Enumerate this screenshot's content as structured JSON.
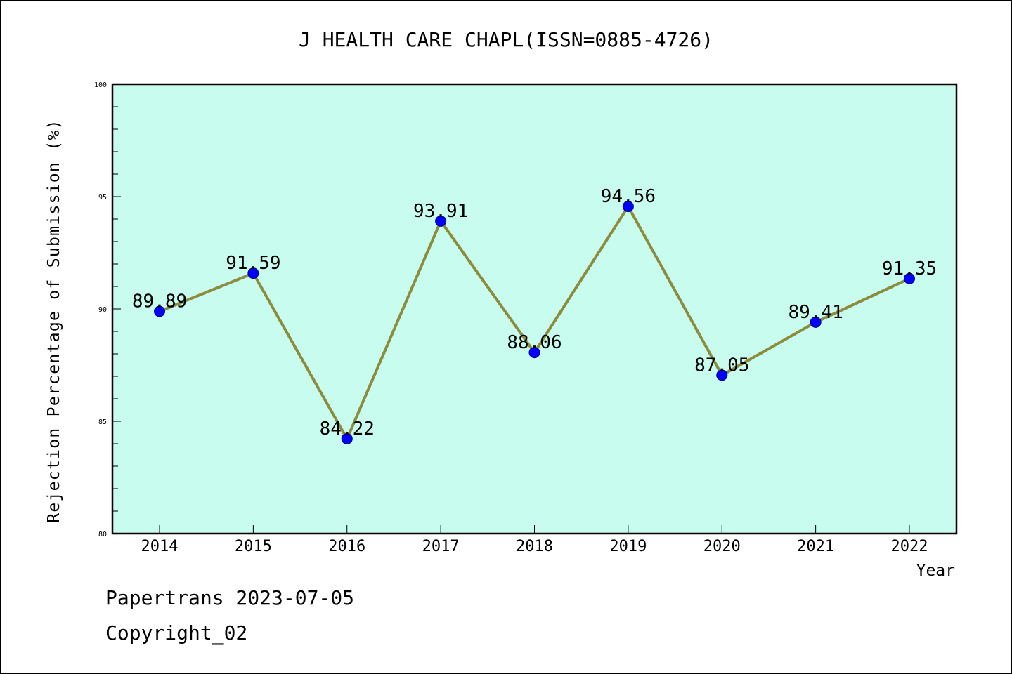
{
  "chart_data": {
    "type": "line",
    "title": "J HEALTH CARE CHAPL(ISSN=0885-4726)",
    "xlabel": "Year",
    "ylabel": "Rejection Percentage of Submission (%)",
    "categories": [
      "2014",
      "2015",
      "2016",
      "2017",
      "2018",
      "2019",
      "2020",
      "2021",
      "2022"
    ],
    "series": [
      {
        "values": [
          89.89,
          91.59,
          84.22,
          93.91,
          88.06,
          94.56,
          87.05,
          89.41,
          91.35
        ]
      }
    ],
    "data_labels": [
      "89.89",
      "91.59",
      "84.22",
      "93.91",
      "88.06",
      "94.56",
      "87.05",
      "89.41",
      "91.35"
    ],
    "ylim": [
      80,
      100
    ],
    "yticks": [
      "80",
      "85",
      "90",
      "95",
      "100"
    ],
    "grid": false,
    "colors": {
      "plot_background": "#c8fcee",
      "line": "#8c8c3c",
      "marker": "#0000ff"
    }
  },
  "footer": {
    "line1": "Papertrans 2023-07-05",
    "line2": "Copyright_02"
  }
}
